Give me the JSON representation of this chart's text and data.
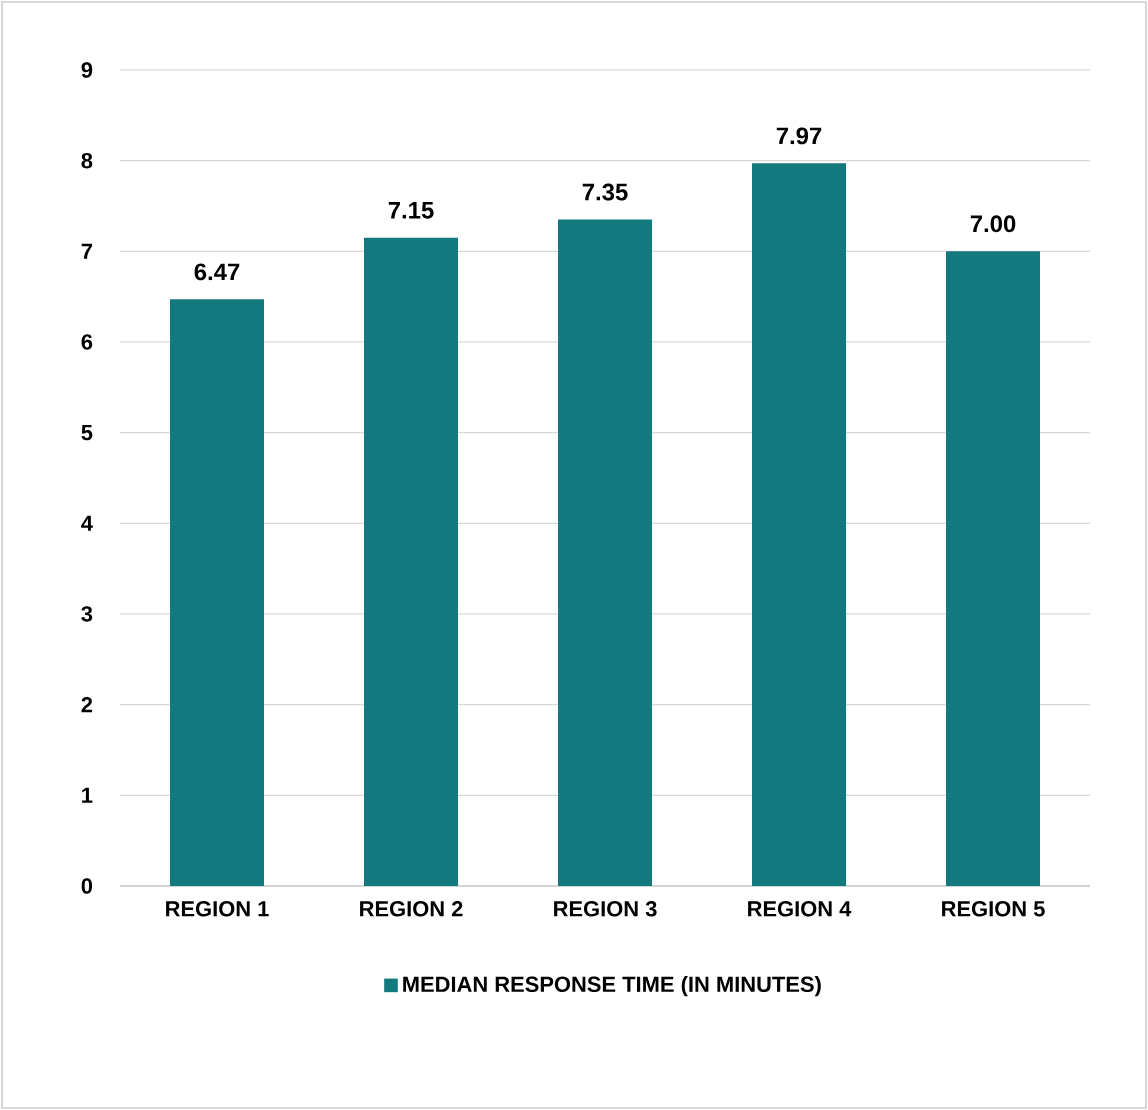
{
  "chart_data": {
    "type": "bar",
    "categories": [
      "REGION 1",
      "REGION 2",
      "REGION 3",
      "REGION 4",
      "REGION 5"
    ],
    "series": [
      {
        "name": "MEDIAN RESPONSE TIME (IN MINUTES)",
        "color": "#127a7e",
        "values": [
          6.47,
          7.15,
          7.35,
          7.97,
          7.0
        ],
        "value_labels": [
          "6.47",
          "7.15",
          "7.35",
          "7.97",
          "7.00"
        ]
      }
    ],
    "ylim": [
      0,
      9
    ],
    "yticks": [
      0,
      1,
      2,
      3,
      4,
      5,
      6,
      7,
      8,
      9
    ],
    "grid": "y",
    "legend": "bottom"
  }
}
